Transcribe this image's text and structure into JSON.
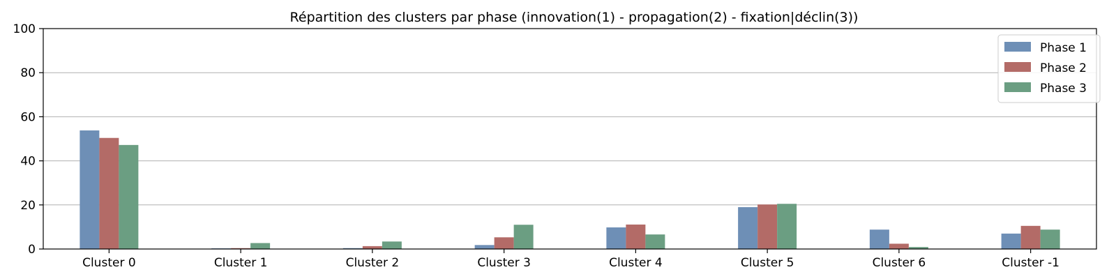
{
  "chart_data": {
    "type": "bar",
    "title": "Répartition des clusters par phase (innovation(1) - propagation(2) - fixation|déclin(3))",
    "xlabel": "",
    "ylabel": "",
    "ylim": [
      0,
      100
    ],
    "yticks": [
      0,
      20,
      40,
      60,
      80,
      100
    ],
    "grid": "y",
    "legend_position": "top-right",
    "categories": [
      "Cluster 0",
      "Cluster 1",
      "Cluster 2",
      "Cluster 3",
      "Cluster 4",
      "Cluster 5",
      "Cluster 6",
      "Cluster -1"
    ],
    "series": [
      {
        "name": "Phase 1",
        "color": "#6e8fb6",
        "values": [
          53.8,
          0.3,
          0.4,
          1.8,
          9.8,
          19.0,
          8.8,
          7.0
        ]
      },
      {
        "name": "Phase 2",
        "color": "#b36b67",
        "values": [
          50.4,
          0.4,
          1.3,
          5.3,
          11.1,
          20.2,
          2.4,
          10.5
        ]
      },
      {
        "name": "Phase 3",
        "color": "#6b9e82",
        "values": [
          47.2,
          2.7,
          3.4,
          11.0,
          6.6,
          20.5,
          0.9,
          8.8
        ]
      }
    ]
  }
}
